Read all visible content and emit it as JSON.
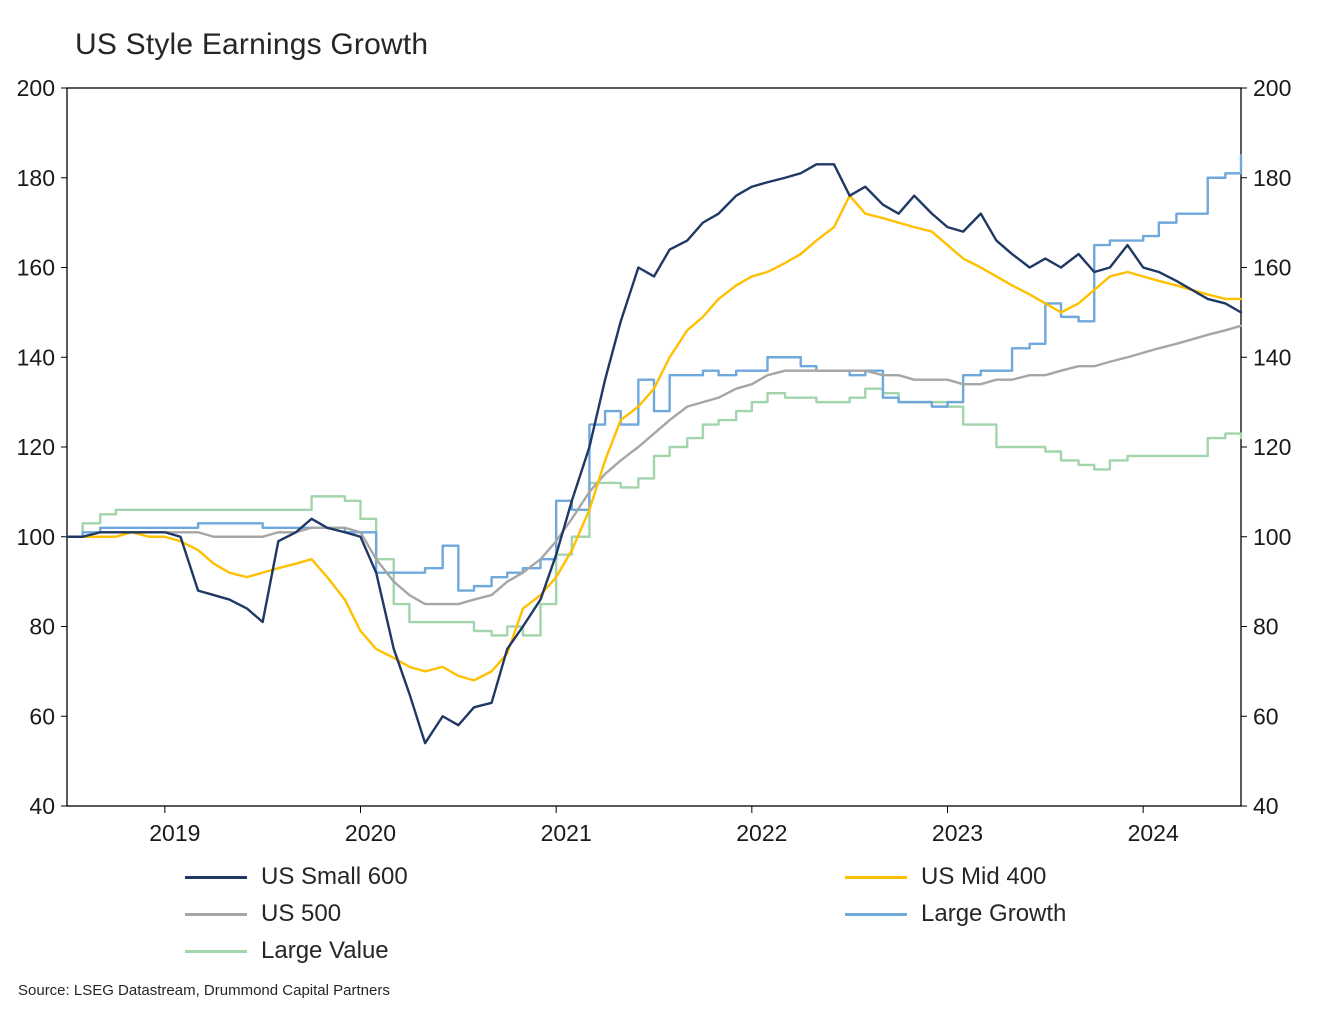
{
  "title": "US Style Earnings Growth",
  "source": "Source: LSEG Datastream, Drummond Capital Partners",
  "chart_data": {
    "type": "line",
    "title": "US Style Earnings Growth",
    "xlabel": "",
    "ylabel": "",
    "xlim": [
      2018.5,
      2024.5
    ],
    "ylim": [
      40,
      200
    ],
    "y_ticks": [
      40,
      60,
      80,
      100,
      120,
      140,
      160,
      180,
      200
    ],
    "x_ticks": [
      2019,
      2020,
      2021,
      2022,
      2023,
      2024
    ],
    "grid": false,
    "legend_position": "bottom",
    "x": [
      2018.5,
      2018.58,
      2018.67,
      2018.75,
      2018.83,
      2018.92,
      2019,
      2019.08,
      2019.17,
      2019.25,
      2019.33,
      2019.42,
      2019.5,
      2019.58,
      2019.67,
      2019.75,
      2019.83,
      2019.92,
      2020,
      2020.08,
      2020.17,
      2020.25,
      2020.33,
      2020.42,
      2020.5,
      2020.58,
      2020.67,
      2020.75,
      2020.83,
      2020.92,
      2021,
      2021.08,
      2021.17,
      2021.25,
      2021.33,
      2021.42,
      2021.5,
      2021.58,
      2021.67,
      2021.75,
      2021.83,
      2021.92,
      2022,
      2022.08,
      2022.17,
      2022.25,
      2022.33,
      2022.42,
      2022.5,
      2022.58,
      2022.67,
      2022.75,
      2022.83,
      2022.92,
      2023,
      2023.08,
      2023.17,
      2023.25,
      2023.33,
      2023.42,
      2023.5,
      2023.58,
      2023.67,
      2023.75,
      2023.83,
      2023.92,
      2024,
      2024.08,
      2024.17,
      2024.25,
      2024.33,
      2024.42,
      2024.5
    ],
    "series": [
      {
        "name": "US Small 600",
        "color": "#1f3864",
        "step": false,
        "values": [
          100,
          100,
          101,
          101,
          101,
          101,
          101,
          100,
          88,
          87,
          86,
          84,
          81,
          99,
          101,
          104,
          102,
          101,
          100,
          92,
          75,
          65,
          54,
          60,
          58,
          62,
          63,
          75,
          80,
          86,
          96,
          108,
          120,
          135,
          148,
          160,
          158,
          164,
          166,
          170,
          172,
          176,
          178,
          179,
          180,
          181,
          183,
          183,
          176,
          178,
          174,
          172,
          176,
          172,
          169,
          168,
          172,
          166,
          163,
          160,
          162,
          160,
          163,
          159,
          160,
          165,
          160,
          159,
          157,
          155,
          153,
          152,
          150
        ]
      },
      {
        "name": "US Mid 400",
        "color": "#ffc000",
        "step": false,
        "values": [
          100,
          100,
          100,
          100,
          101,
          100,
          100,
          99,
          97,
          94,
          92,
          91,
          92,
          93,
          94,
          95,
          91,
          86,
          79,
          75,
          73,
          71,
          70,
          71,
          69,
          68,
          70,
          74,
          84,
          87,
          91,
          97,
          106,
          117,
          126,
          129,
          133,
          140,
          146,
          149,
          153,
          156,
          158,
          159,
          161,
          163,
          166,
          169,
          176,
          172,
          171,
          170,
          169,
          168,
          165,
          162,
          160,
          158,
          156,
          154,
          152,
          150,
          152,
          155,
          158,
          159,
          158,
          157,
          156,
          155,
          154,
          153,
          153
        ]
      },
      {
        "name": "US 500",
        "color": "#a6a6a6",
        "step": false,
        "values": [
          100,
          100,
          101,
          101,
          101,
          101,
          101,
          101,
          101,
          100,
          100,
          100,
          100,
          101,
          101,
          102,
          102,
          102,
          101,
          95,
          90,
          87,
          85,
          85,
          85,
          86,
          87,
          90,
          92,
          95,
          99,
          104,
          110,
          114,
          117,
          120,
          123,
          126,
          129,
          130,
          131,
          133,
          134,
          136,
          137,
          137,
          137,
          137,
          137,
          137,
          136,
          136,
          135,
          135,
          135,
          134,
          134,
          135,
          135,
          136,
          136,
          137,
          138,
          138,
          139,
          140,
          141,
          142,
          143,
          144,
          145,
          146,
          147
        ]
      },
      {
        "name": "Large Growth",
        "color": "#6fa8dc",
        "step": true,
        "values": [
          100,
          101,
          102,
          102,
          102,
          102,
          102,
          102,
          103,
          103,
          103,
          103,
          102,
          102,
          102,
          102,
          102,
          101,
          101,
          92,
          92,
          92,
          93,
          98,
          88,
          89,
          91,
          92,
          93,
          95,
          108,
          106,
          125,
          128,
          125,
          135,
          128,
          136,
          136,
          137,
          136,
          137,
          137,
          140,
          140,
          138,
          137,
          137,
          136,
          137,
          131,
          130,
          130,
          129,
          130,
          136,
          137,
          137,
          142,
          143,
          152,
          149,
          148,
          165,
          166,
          166,
          167,
          170,
          172,
          172,
          180,
          181,
          185
        ]
      },
      {
        "name": "Large Value",
        "color": "#a2d5ab",
        "step": true,
        "values": [
          100,
          103,
          105,
          106,
          106,
          106,
          106,
          106,
          106,
          106,
          106,
          106,
          106,
          106,
          106,
          109,
          109,
          108,
          104,
          95,
          85,
          81,
          81,
          81,
          81,
          79,
          78,
          80,
          78,
          85,
          96,
          100,
          112,
          112,
          111,
          113,
          118,
          120,
          122,
          125,
          126,
          128,
          130,
          132,
          131,
          131,
          130,
          130,
          131,
          133,
          132,
          130,
          130,
          130,
          129,
          125,
          125,
          120,
          120,
          120,
          119,
          117,
          116,
          115,
          117,
          118,
          118,
          118,
          118,
          118,
          122,
          123,
          122
        ]
      }
    ]
  }
}
